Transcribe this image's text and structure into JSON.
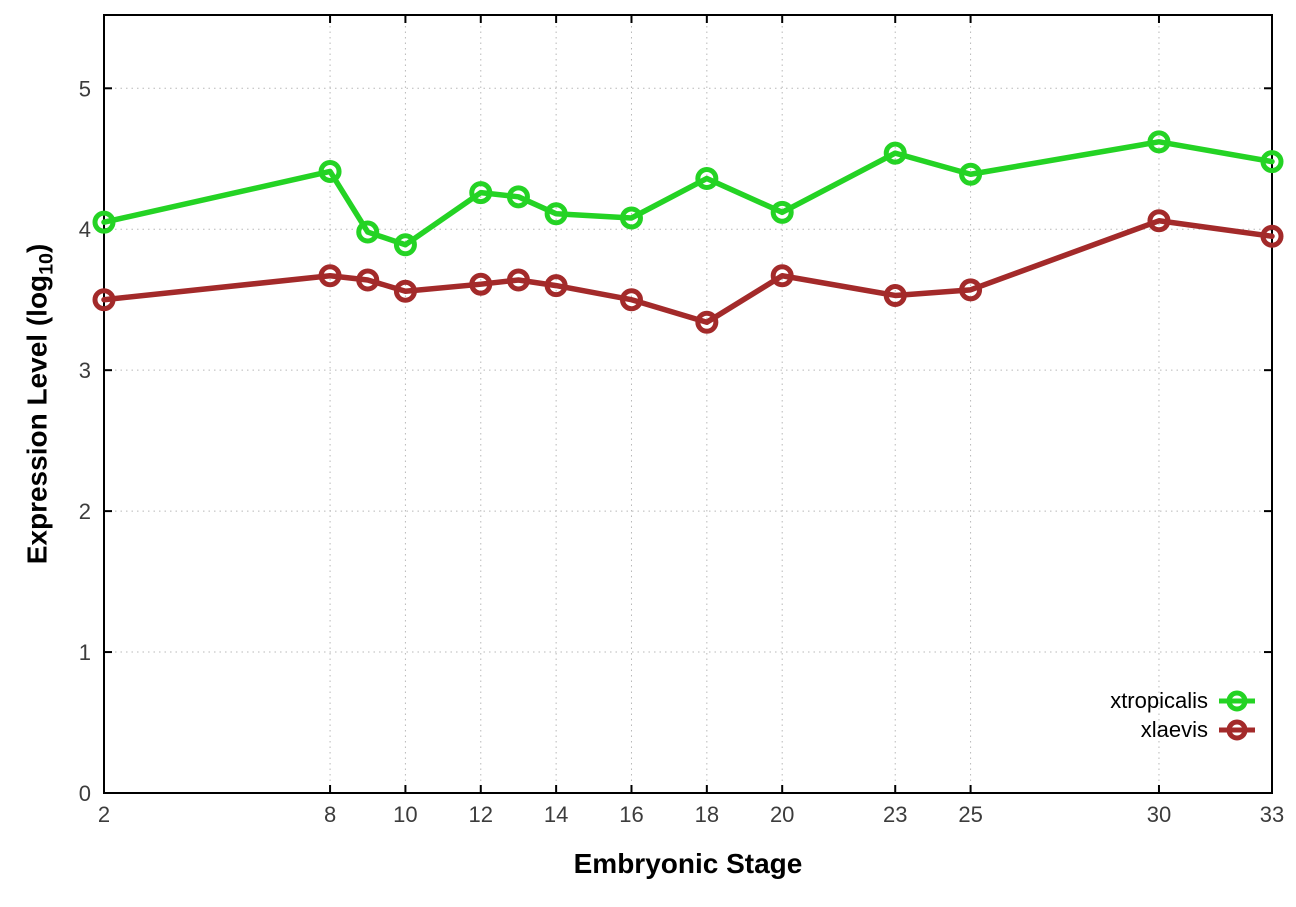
{
  "figure": {
    "background": "#ffffff",
    "axis_color": "#000000",
    "grid_color": "#b8b8b8",
    "tick_label_color": "#3c3c3c"
  },
  "chart_data": {
    "type": "line",
    "title": "",
    "xlabel": "Embryonic Stage",
    "ylabel": "Expression Level (log10)",
    "ylabel_parts": {
      "main": "Expression Level (log",
      "sub": "10",
      "close": ")"
    },
    "x": [
      2,
      8,
      9,
      10,
      12,
      13,
      14,
      16,
      18,
      20,
      23,
      25,
      30,
      33
    ],
    "xtick_labels": [
      "2",
      "8",
      "10",
      "12",
      "14",
      "16",
      "18",
      "20",
      "23",
      "25",
      "30",
      "33"
    ],
    "xtick_values": [
      2,
      8,
      10,
      12,
      14,
      16,
      18,
      20,
      23,
      25,
      30,
      33
    ],
    "ytick_labels": [
      "0",
      "1",
      "2",
      "3",
      "4",
      "5"
    ],
    "ytick_values": [
      0,
      1,
      2,
      3,
      4,
      5
    ],
    "xlim": [
      2,
      33
    ],
    "ylim": [
      0,
      5.52
    ],
    "grid": true,
    "legend_position": "inside-bottom-right",
    "series": [
      {
        "name": "xtropicalis",
        "color": "#24d324",
        "marker": "open-circle",
        "values": [
          4.05,
          4.41,
          3.98,
          3.89,
          4.26,
          4.23,
          4.11,
          4.08,
          4.36,
          4.12,
          4.54,
          4.39,
          4.62,
          4.48
        ]
      },
      {
        "name": "xlaevis",
        "color": "#a32a2a",
        "marker": "open-circle",
        "values": [
          3.5,
          3.67,
          3.64,
          3.56,
          3.61,
          3.64,
          3.6,
          3.5,
          3.34,
          3.67,
          3.53,
          3.57,
          4.06,
          3.95
        ]
      }
    ]
  }
}
